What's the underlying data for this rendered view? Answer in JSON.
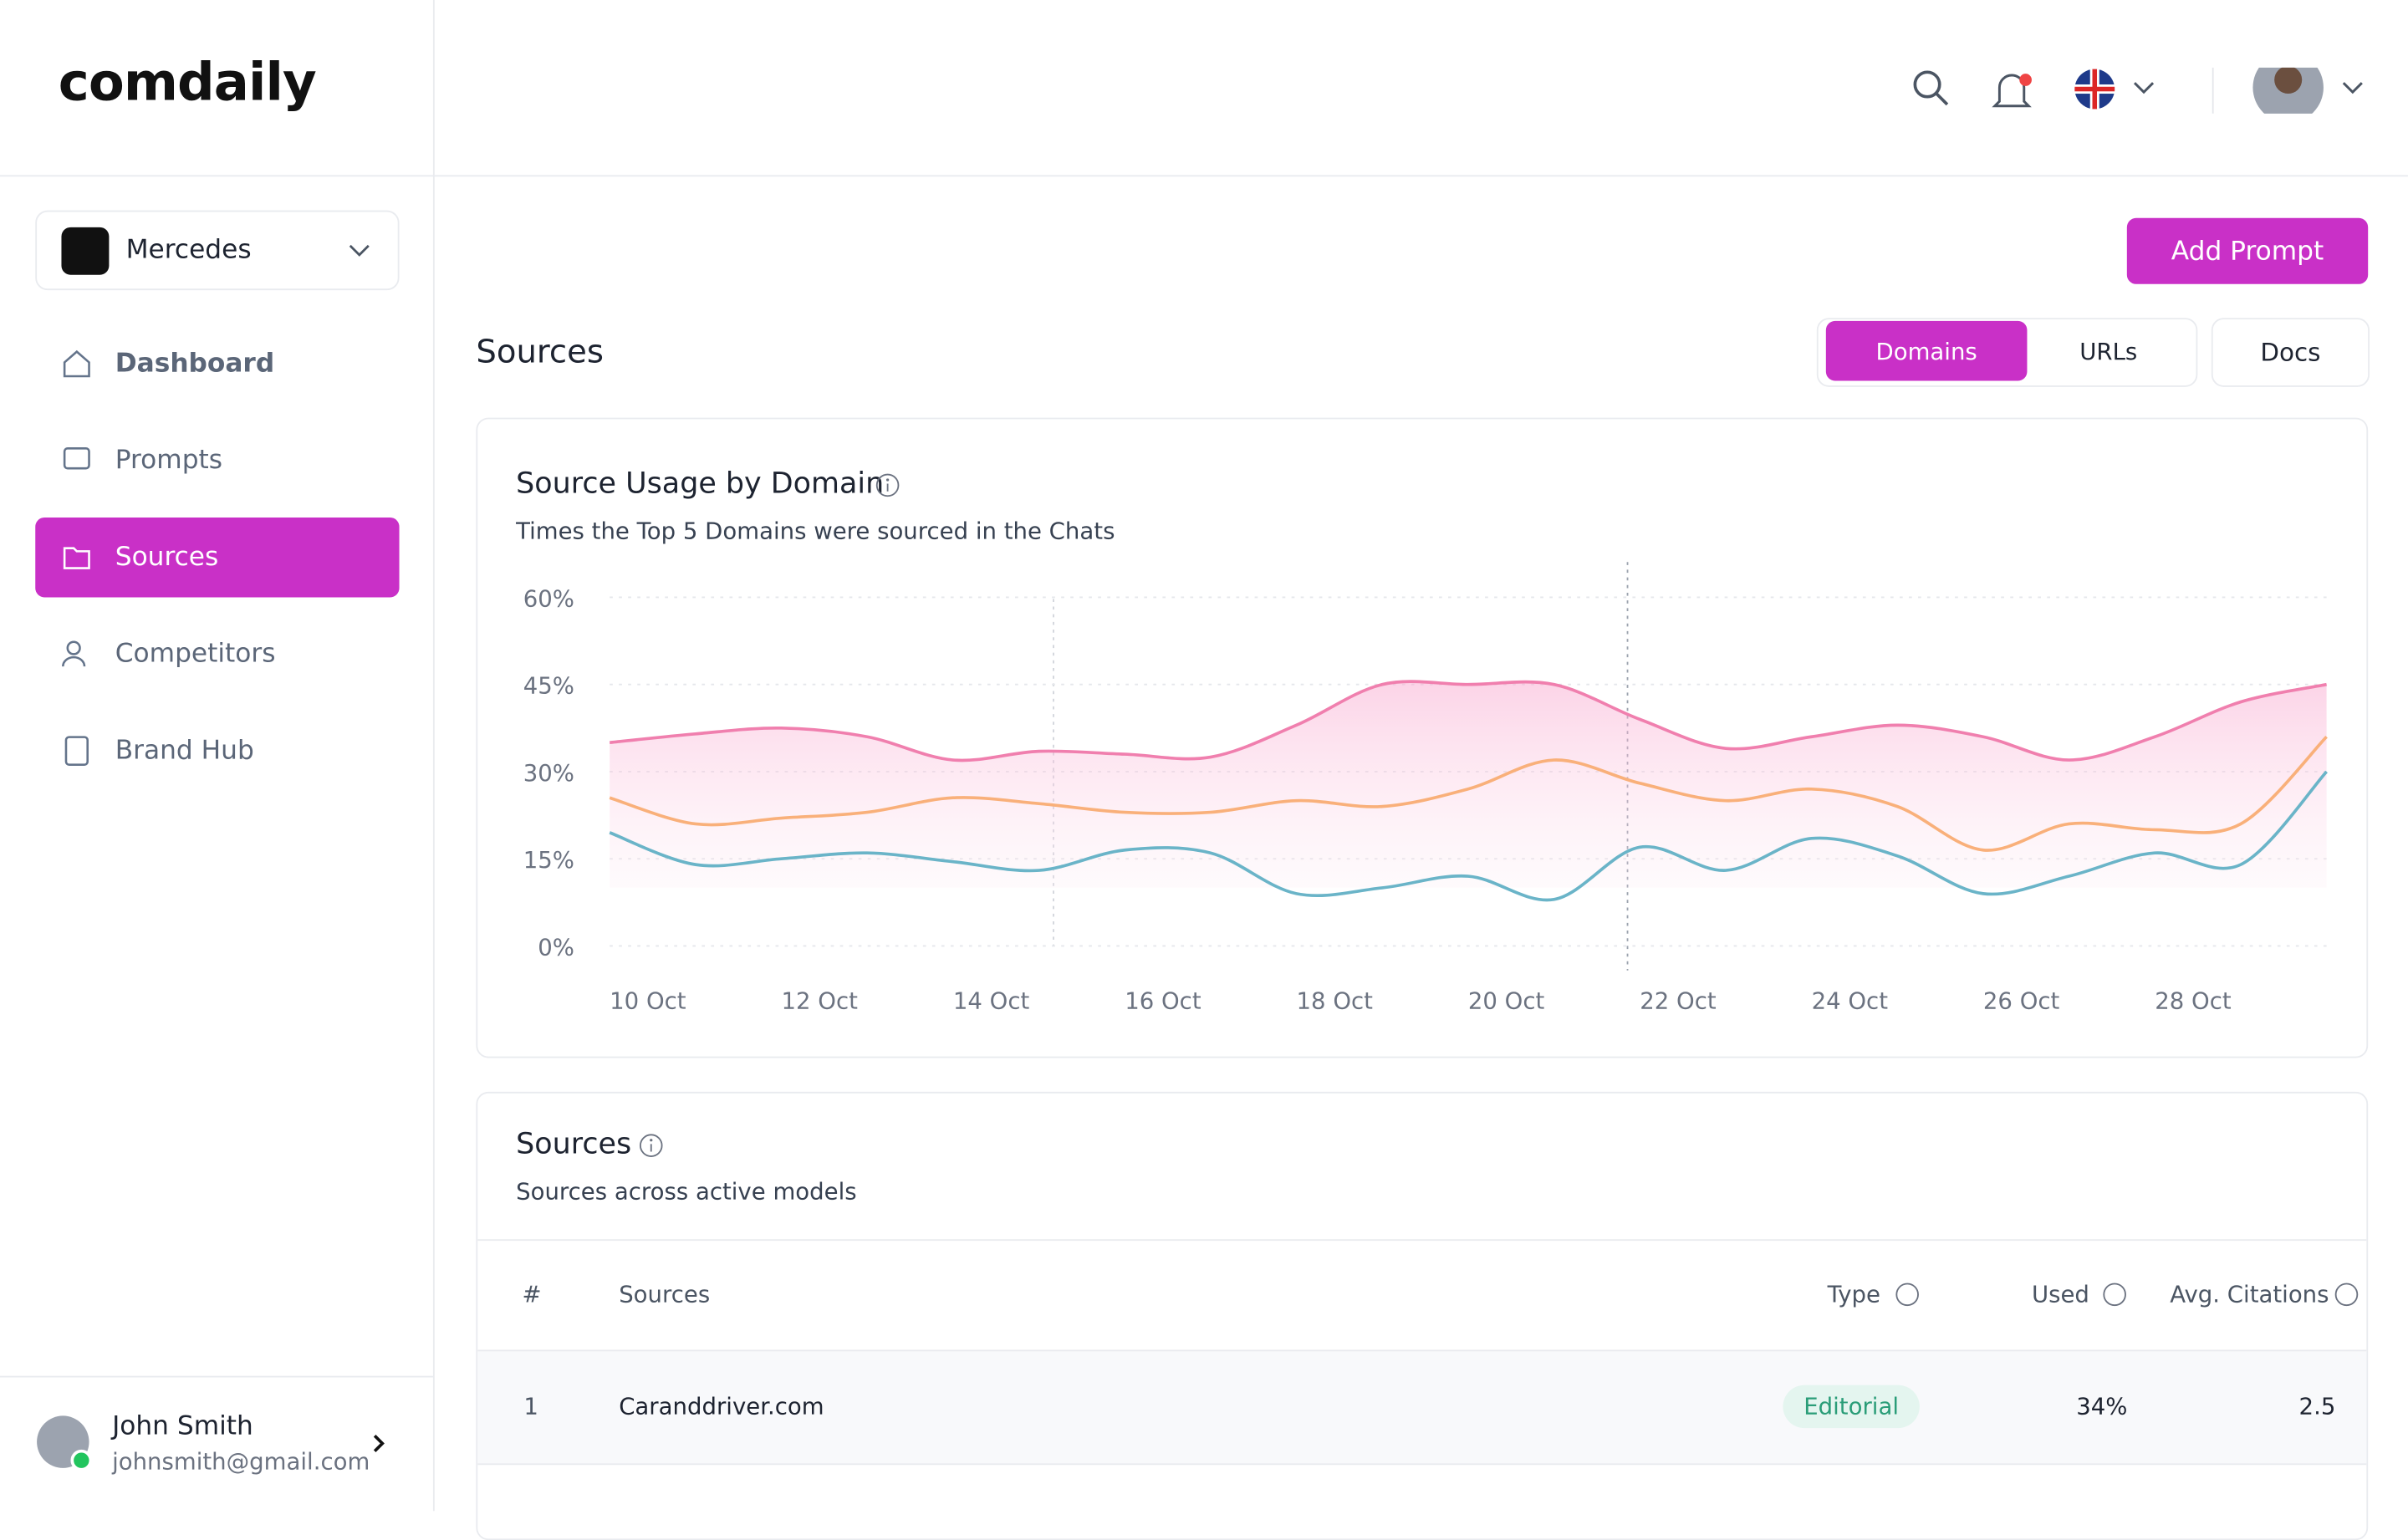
{
  "brand": "comdaily",
  "workspace": "Mercedes",
  "nav": [
    "Dashboard",
    "Prompts",
    "Sources",
    "Competitors",
    "Brand Hub"
  ],
  "user": {
    "name": "John Smith",
    "email": "johnsmith@gmail.com"
  },
  "add_button": "Add Prompt",
  "page_title": "Sources",
  "tabs": [
    "Domains",
    "URLs"
  ],
  "docs_button": "Docs",
  "chart_data": {
    "type": "line",
    "title": "Source Usage by Domain",
    "subtitle": "Times the Top 5 Domains were sourced in the Chats",
    "categories": [
      "10 Oct",
      null,
      "12 Oct",
      null,
      "14 Oct",
      null,
      "16 Oct",
      null,
      "18 Oct",
      null,
      "20 Oct",
      null,
      "22 Oct",
      null,
      "24 Oct",
      null,
      "26 Oct",
      null,
      "28 Oct",
      null,
      null
    ],
    "series": [
      {
        "color": "#f07fae",
        "values": [
          35,
          36.5,
          37.5,
          36,
          32,
          33.5,
          33,
          32.5,
          38,
          45,
          45,
          45,
          39,
          34,
          36,
          38,
          36,
          32,
          36,
          42,
          45
        ]
      },
      {
        "color": "#f9b07a",
        "values": [
          25.5,
          21,
          22,
          23,
          25.5,
          24.5,
          23,
          23,
          25,
          24,
          27,
          32,
          28,
          25,
          27,
          24,
          16.5,
          21,
          20,
          21,
          36
        ]
      },
      {
        "color": "#6ab4c8",
        "values": [
          19.5,
          14,
          15,
          16,
          14.5,
          13,
          16.5,
          16,
          9,
          10,
          12,
          8,
          17,
          13,
          18.5,
          15.5,
          9,
          12,
          16,
          14,
          30
        ]
      }
    ],
    "ylim": [
      0,
      60
    ],
    "yticks": [
      {
        "value": 0,
        "label": "0%"
      },
      {
        "value": 15,
        "label": "15%"
      },
      {
        "value": 30,
        "label": "30%"
      },
      {
        "value": 45,
        "label": "45%"
      },
      {
        "value": 60,
        "label": "60%"
      }
    ],
    "grid": true
  },
  "table": {
    "title": "Sources",
    "subtitle": "Sources across active models",
    "header": [
      "#",
      "Sources",
      "Type",
      "Used",
      "Avg. Citations"
    ],
    "rows": [
      [
        "1",
        "Caranddriver.com",
        "Editorial",
        "34%",
        "2.5"
      ]
    ]
  }
}
